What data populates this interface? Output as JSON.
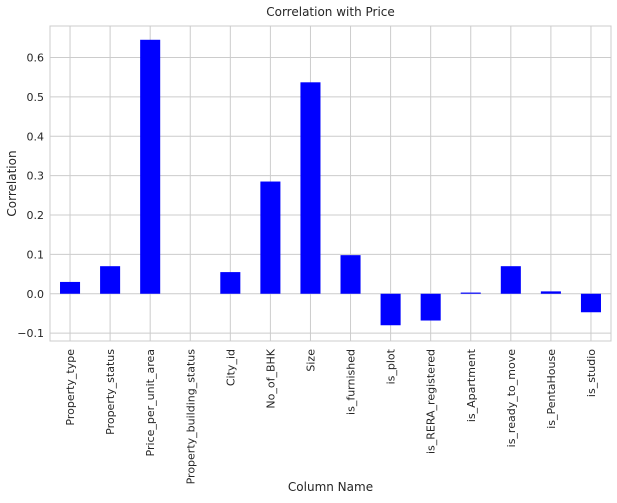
{
  "chart_data": {
    "type": "bar",
    "title": "Correlation with Price",
    "xlabel": "Column Name",
    "ylabel": "Correlation",
    "categories": [
      "Property_type",
      "Property_status",
      "Price_per_unit_area",
      "Property_building_status",
      "City_id",
      "No_of_BHK",
      "Size",
      "is_furnished",
      "is_plot",
      "is_RERA_registered",
      "is_Apartment",
      "is_ready_to_move",
      "is_PentaHouse",
      "is_studio"
    ],
    "values": [
      0.03,
      0.07,
      0.645,
      0.0,
      0.055,
      0.285,
      0.537,
      0.098,
      -0.08,
      -0.068,
      0.003,
      0.07,
      0.006,
      -0.047
    ],
    "ylim": [
      -0.12,
      0.68
    ],
    "yticks": [
      -0.1,
      0.0,
      0.1,
      0.2,
      0.3,
      0.4,
      0.5,
      0.6
    ],
    "yticklabels": [
      "−0.1",
      "0.0",
      "0.1",
      "0.2",
      "0.3",
      "0.4",
      "0.5",
      "0.6"
    ],
    "bar_color": "#0000ff",
    "grid": true,
    "legend": "none"
  }
}
